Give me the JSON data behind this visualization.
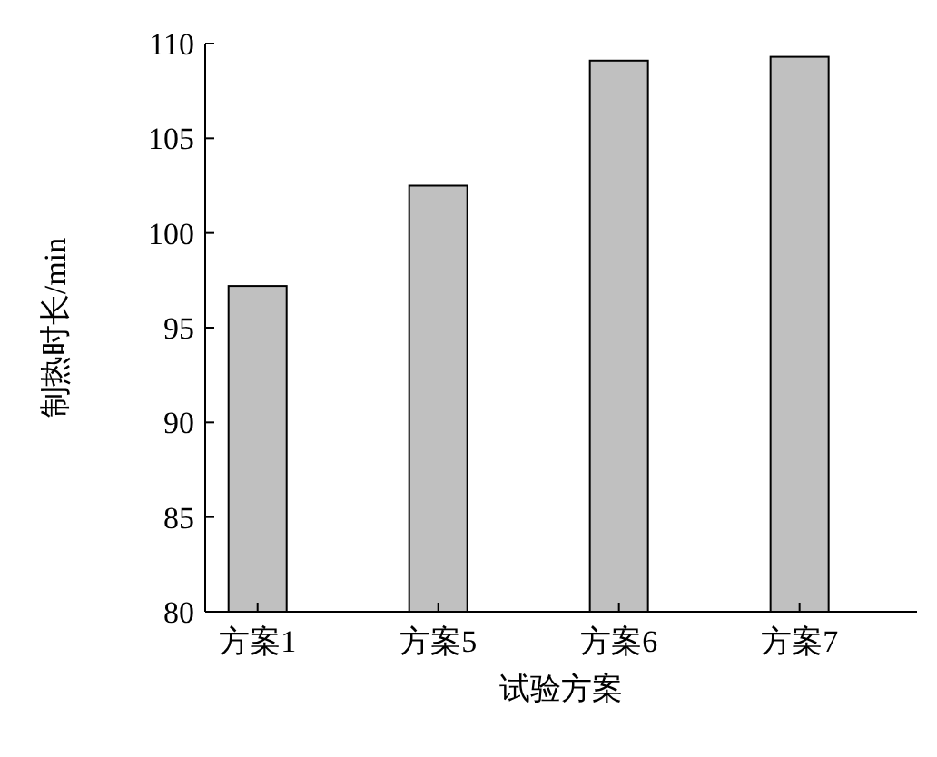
{
  "chart_data": {
    "type": "bar",
    "xlabel": "试验方案",
    "ylabel": "制热时长/min",
    "categories": [
      "方案1",
      "方案5",
      "方案6",
      "方案7"
    ],
    "values": [
      97.2,
      102.5,
      109.1,
      109.3
    ],
    "color": "#c0c0c0",
    "ylim": [
      80,
      110
    ],
    "yticks": [
      80,
      85,
      90,
      95,
      100,
      105,
      110
    ],
    "grid": false
  }
}
